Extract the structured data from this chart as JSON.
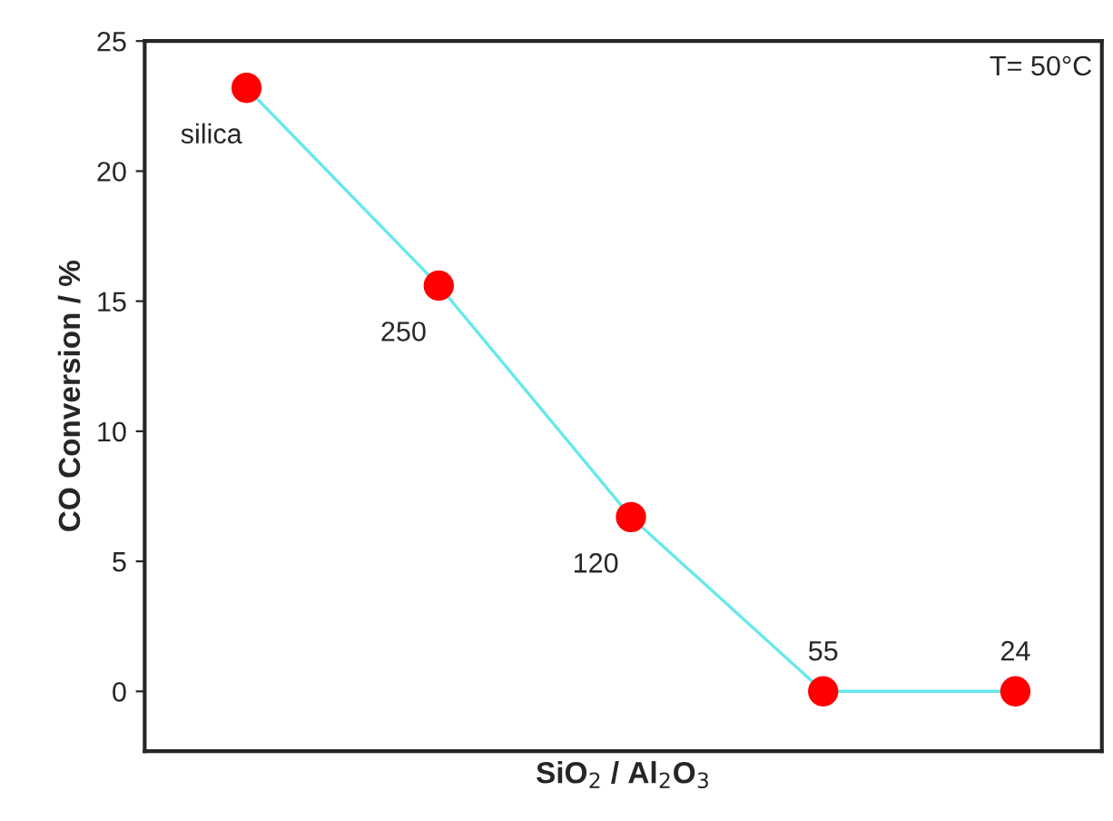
{
  "chart_data": {
    "type": "line",
    "categories": [
      "silica",
      "250",
      "120",
      "55",
      "24"
    ],
    "series": [
      {
        "color": "#66e8ec",
        "colors": [
          "#ff0000",
          "#ff0000",
          "#ff0000",
          "#ff0000",
          "#ff0000"
        ],
        "values": [
          23.2,
          15.6,
          6.7,
          0,
          0
        ]
      }
    ],
    "marker": "circle",
    "line_style": "solid",
    "xlabel": "SiO$_{2}$ / Al$_{2}$O$_{3}$",
    "ylabel": "CO Conversion / %",
    "ylim": [
      -2.3,
      25
    ],
    "yticks": [
      0,
      5,
      10,
      15,
      20,
      25
    ],
    "tick_labels": "y",
    "grid": false,
    "legend": false,
    "annotations": [
      "T= 50°C"
    ]
  }
}
